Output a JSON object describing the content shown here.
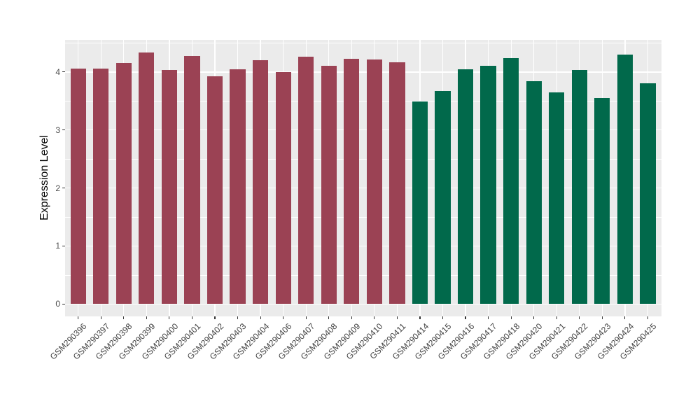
{
  "chart_data": {
    "type": "bar",
    "title": "",
    "ylabel": "Expression Level",
    "xlabel": "",
    "ylim": [
      0,
      4.56
    ],
    "yticks": [
      0,
      1,
      2,
      3,
      4
    ],
    "minor_gridlines": [
      0.5,
      1.5,
      2.5,
      3.5,
      4.5
    ],
    "grid": "on",
    "legend_position": "none",
    "x_tick_angle": 45,
    "panel_background": "#EBEBEB",
    "gridline_color": "#FFFFFF",
    "group_colors": [
      "#9B4254",
      "#01694B"
    ],
    "categories": [
      "GSM290396",
      "GSM290397",
      "GSM290398",
      "GSM290399",
      "GSM290400",
      "GSM290401",
      "GSM290402",
      "GSM290403",
      "GSM290404",
      "GSM290406",
      "GSM290407",
      "GSM290408",
      "GSM290409",
      "GSM290410",
      "GSM290411",
      "GSM290414",
      "GSM290415",
      "GSM290416",
      "GSM290417",
      "GSM290418",
      "GSM290420",
      "GSM290421",
      "GSM290422",
      "GSM290423",
      "GSM290424",
      "GSM290425"
    ],
    "values": [
      4.06,
      4.06,
      4.15,
      4.34,
      4.04,
      4.28,
      3.93,
      4.05,
      4.21,
      4.0,
      4.26,
      4.11,
      4.23,
      4.22,
      4.17,
      3.49,
      3.67,
      4.05,
      4.11,
      4.24,
      3.84,
      3.65,
      4.03,
      3.55,
      4.3,
      3.81
    ],
    "group_index": [
      0,
      0,
      0,
      0,
      0,
      0,
      0,
      0,
      0,
      0,
      0,
      0,
      0,
      0,
      0,
      1,
      1,
      1,
      1,
      1,
      1,
      1,
      1,
      1,
      1,
      1
    ]
  }
}
